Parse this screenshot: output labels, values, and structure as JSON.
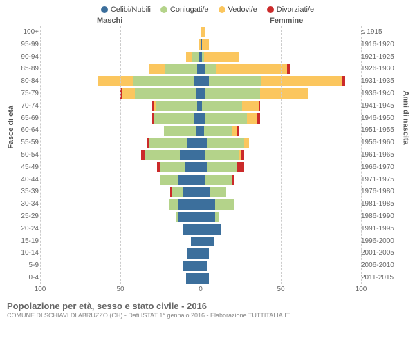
{
  "chart": {
    "type": "population-pyramid",
    "legend": [
      {
        "label": "Celibi/Nubili",
        "color": "#3C6F9C"
      },
      {
        "label": "Coniugati/e",
        "color": "#B4D38A"
      },
      {
        "label": "Vedovi/e",
        "color": "#FBC65E"
      },
      {
        "label": "Divorziati/e",
        "color": "#CB2A2A"
      }
    ],
    "header_male": "Maschi",
    "header_female": "Femmine",
    "y_axis_left_title": "Fasce di età",
    "y_axis_right_title": "Anni di nascita",
    "x_axis_max": 100,
    "x_ticks": [
      100,
      50,
      0,
      50,
      100
    ],
    "title": "Popolazione per età, sesso e stato civile - 2016",
    "subtitle": "COMUNE DI SCHIAVI DI ABRUZZO (CH) - Dati ISTAT 1° gennaio 2016 - Elaborazione TUTTITALIA.IT",
    "background_color": "#ffffff",
    "grid_color": "#cccccc",
    "label_color": "#666666",
    "label_fontsize": 10,
    "title_fontsize": 13,
    "rows": [
      {
        "age": "100+",
        "birth": "≤ 1915",
        "m": {
          "c": 0,
          "co": 0,
          "v": 0,
          "d": 0
        },
        "f": {
          "c": 0,
          "co": 0,
          "v": 3,
          "d": 0
        }
      },
      {
        "age": "95-99",
        "birth": "1916-1920",
        "m": {
          "c": 0,
          "co": 0,
          "v": 1,
          "d": 0
        },
        "f": {
          "c": 1,
          "co": 0,
          "v": 4,
          "d": 0
        }
      },
      {
        "age": "90-94",
        "birth": "1921-1925",
        "m": {
          "c": 1,
          "co": 4,
          "v": 4,
          "d": 0
        },
        "f": {
          "c": 1,
          "co": 1,
          "v": 22,
          "d": 0
        }
      },
      {
        "age": "85-89",
        "birth": "1926-1930",
        "m": {
          "c": 2,
          "co": 20,
          "v": 10,
          "d": 0
        },
        "f": {
          "c": 3,
          "co": 7,
          "v": 44,
          "d": 2
        }
      },
      {
        "age": "80-84",
        "birth": "1931-1935",
        "m": {
          "c": 4,
          "co": 38,
          "v": 22,
          "d": 0
        },
        "f": {
          "c": 5,
          "co": 33,
          "v": 50,
          "d": 2
        }
      },
      {
        "age": "75-79",
        "birth": "1936-1940",
        "m": {
          "c": 3,
          "co": 38,
          "v": 8,
          "d": 1
        },
        "f": {
          "c": 3,
          "co": 34,
          "v": 30,
          "d": 0
        }
      },
      {
        "age": "70-74",
        "birth": "1941-1945",
        "m": {
          "c": 2,
          "co": 26,
          "v": 1,
          "d": 1
        },
        "f": {
          "c": 1,
          "co": 25,
          "v": 10,
          "d": 1
        }
      },
      {
        "age": "65-69",
        "birth": "1946-1950",
        "m": {
          "c": 4,
          "co": 25,
          "v": 0,
          "d": 1
        },
        "f": {
          "c": 3,
          "co": 26,
          "v": 6,
          "d": 2
        }
      },
      {
        "age": "60-64",
        "birth": "1951-1955",
        "m": {
          "c": 3,
          "co": 20,
          "v": 0,
          "d": 0
        },
        "f": {
          "c": 2,
          "co": 18,
          "v": 3,
          "d": 1
        }
      },
      {
        "age": "55-59",
        "birth": "1956-1960",
        "m": {
          "c": 8,
          "co": 24,
          "v": 0,
          "d": 1
        },
        "f": {
          "c": 4,
          "co": 23,
          "v": 3,
          "d": 0
        }
      },
      {
        "age": "50-54",
        "birth": "1961-1965",
        "m": {
          "c": 13,
          "co": 22,
          "v": 0,
          "d": 2
        },
        "f": {
          "c": 3,
          "co": 21,
          "v": 1,
          "d": 2
        }
      },
      {
        "age": "45-49",
        "birth": "1966-1970",
        "m": {
          "c": 10,
          "co": 15,
          "v": 0,
          "d": 2
        },
        "f": {
          "c": 4,
          "co": 19,
          "v": 0,
          "d": 4
        }
      },
      {
        "age": "40-44",
        "birth": "1971-1975",
        "m": {
          "c": 14,
          "co": 11,
          "v": 0,
          "d": 0
        },
        "f": {
          "c": 3,
          "co": 17,
          "v": 0,
          "d": 1
        }
      },
      {
        "age": "35-39",
        "birth": "1976-1980",
        "m": {
          "c": 11,
          "co": 7,
          "v": 0,
          "d": 1
        },
        "f": {
          "c": 6,
          "co": 10,
          "v": 0,
          "d": 0
        }
      },
      {
        "age": "30-34",
        "birth": "1981-1985",
        "m": {
          "c": 14,
          "co": 6,
          "v": 0,
          "d": 0
        },
        "f": {
          "c": 9,
          "co": 12,
          "v": 0,
          "d": 0
        }
      },
      {
        "age": "25-29",
        "birth": "1986-1990",
        "m": {
          "c": 14,
          "co": 1,
          "v": 0,
          "d": 0
        },
        "f": {
          "c": 9,
          "co": 2,
          "v": 0,
          "d": 0
        }
      },
      {
        "age": "20-24",
        "birth": "1991-1995",
        "m": {
          "c": 11,
          "co": 0,
          "v": 0,
          "d": 0
        },
        "f": {
          "c": 13,
          "co": 0,
          "v": 0,
          "d": 0
        }
      },
      {
        "age": "15-19",
        "birth": "1996-2000",
        "m": {
          "c": 6,
          "co": 0,
          "v": 0,
          "d": 0
        },
        "f": {
          "c": 8,
          "co": 0,
          "v": 0,
          "d": 0
        }
      },
      {
        "age": "10-14",
        "birth": "2001-2005",
        "m": {
          "c": 8,
          "co": 0,
          "v": 0,
          "d": 0
        },
        "f": {
          "c": 5,
          "co": 0,
          "v": 0,
          "d": 0
        }
      },
      {
        "age": "5-9",
        "birth": "2006-2010",
        "m": {
          "c": 11,
          "co": 0,
          "v": 0,
          "d": 0
        },
        "f": {
          "c": 4,
          "co": 0,
          "v": 0,
          "d": 0
        }
      },
      {
        "age": "0-4",
        "birth": "2011-2015",
        "m": {
          "c": 9,
          "co": 0,
          "v": 0,
          "d": 0
        },
        "f": {
          "c": 5,
          "co": 0,
          "v": 0,
          "d": 0
        }
      }
    ]
  }
}
